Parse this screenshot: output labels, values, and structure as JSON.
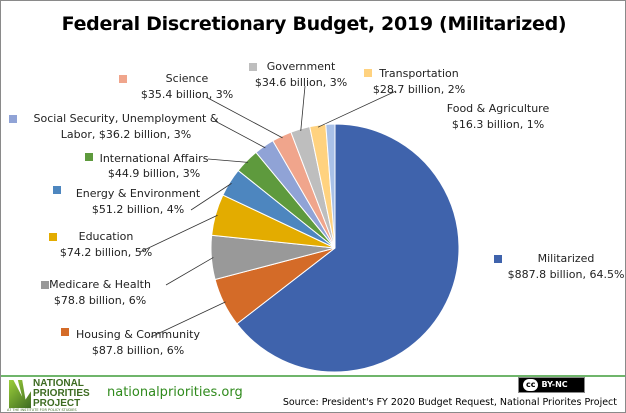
{
  "chart_data": {
    "type": "pie",
    "title": "Federal Discretionary Budget, 2019 (Militarized)",
    "start_angle": "12 o'clock",
    "direction": "clockwise",
    "slices": [
      {
        "label": "Militarized",
        "value": 887.8,
        "text": "$887.8 billion, 64.5%",
        "color": "#3F63AC"
      },
      {
        "label": "Housing & Community",
        "value": 87.8,
        "text": "$87.8 billion, 6%",
        "color": "#D46B28"
      },
      {
        "label": "Medicare & Health",
        "value": 78.8,
        "text": "$78.8 billion, 6%",
        "color": "#999999"
      },
      {
        "label": "Education",
        "value": 74.2,
        "text": "$74.2 billion, 5%",
        "color": "#E3AC00"
      },
      {
        "label": "Energy & Environment",
        "value": 51.2,
        "text": "$51.2 billion, 4%",
        "color": "#4D86BF"
      },
      {
        "label": "International Affairs",
        "value": 44.9,
        "text": "$44.9 billion, 3%",
        "color": "#5E9A3D"
      },
      {
        "label": "Social Security, Unemployment &",
        "label2": "Labor,",
        "value": 36.2,
        "text": "$36.2 billion, 3%",
        "color": "#90A3D6"
      },
      {
        "label": "Science",
        "value": 35.4,
        "text": "$35.4 billion, 3%",
        "color": "#F0A58C"
      },
      {
        "label": "Government",
        "value": 34.6,
        "text": "$34.6 billion, 3%",
        "color": "#BEBEBE"
      },
      {
        "label": "Transportation",
        "value": 28.7,
        "text": "$28.7 billion, 2%",
        "color": "#FFD27F"
      },
      {
        "label": "Food & Agriculture",
        "value": 16.3,
        "text": "$16.3 billion, 1%",
        "color": "#A9C1E8"
      }
    ],
    "legend": "none (data labels with leader lines)"
  },
  "footer": {
    "logo_text": [
      "NATIONAL",
      "PRIORITIES",
      "PROJECT"
    ],
    "logo_sub": "AT THE INSTITUTE FOR POLICY STUDIES",
    "url": "nationalpriorities.org",
    "license": "BY-NC",
    "license_icon": "cc",
    "source": "Source: President's FY 2020 Budget Request, National Priorites Project"
  }
}
